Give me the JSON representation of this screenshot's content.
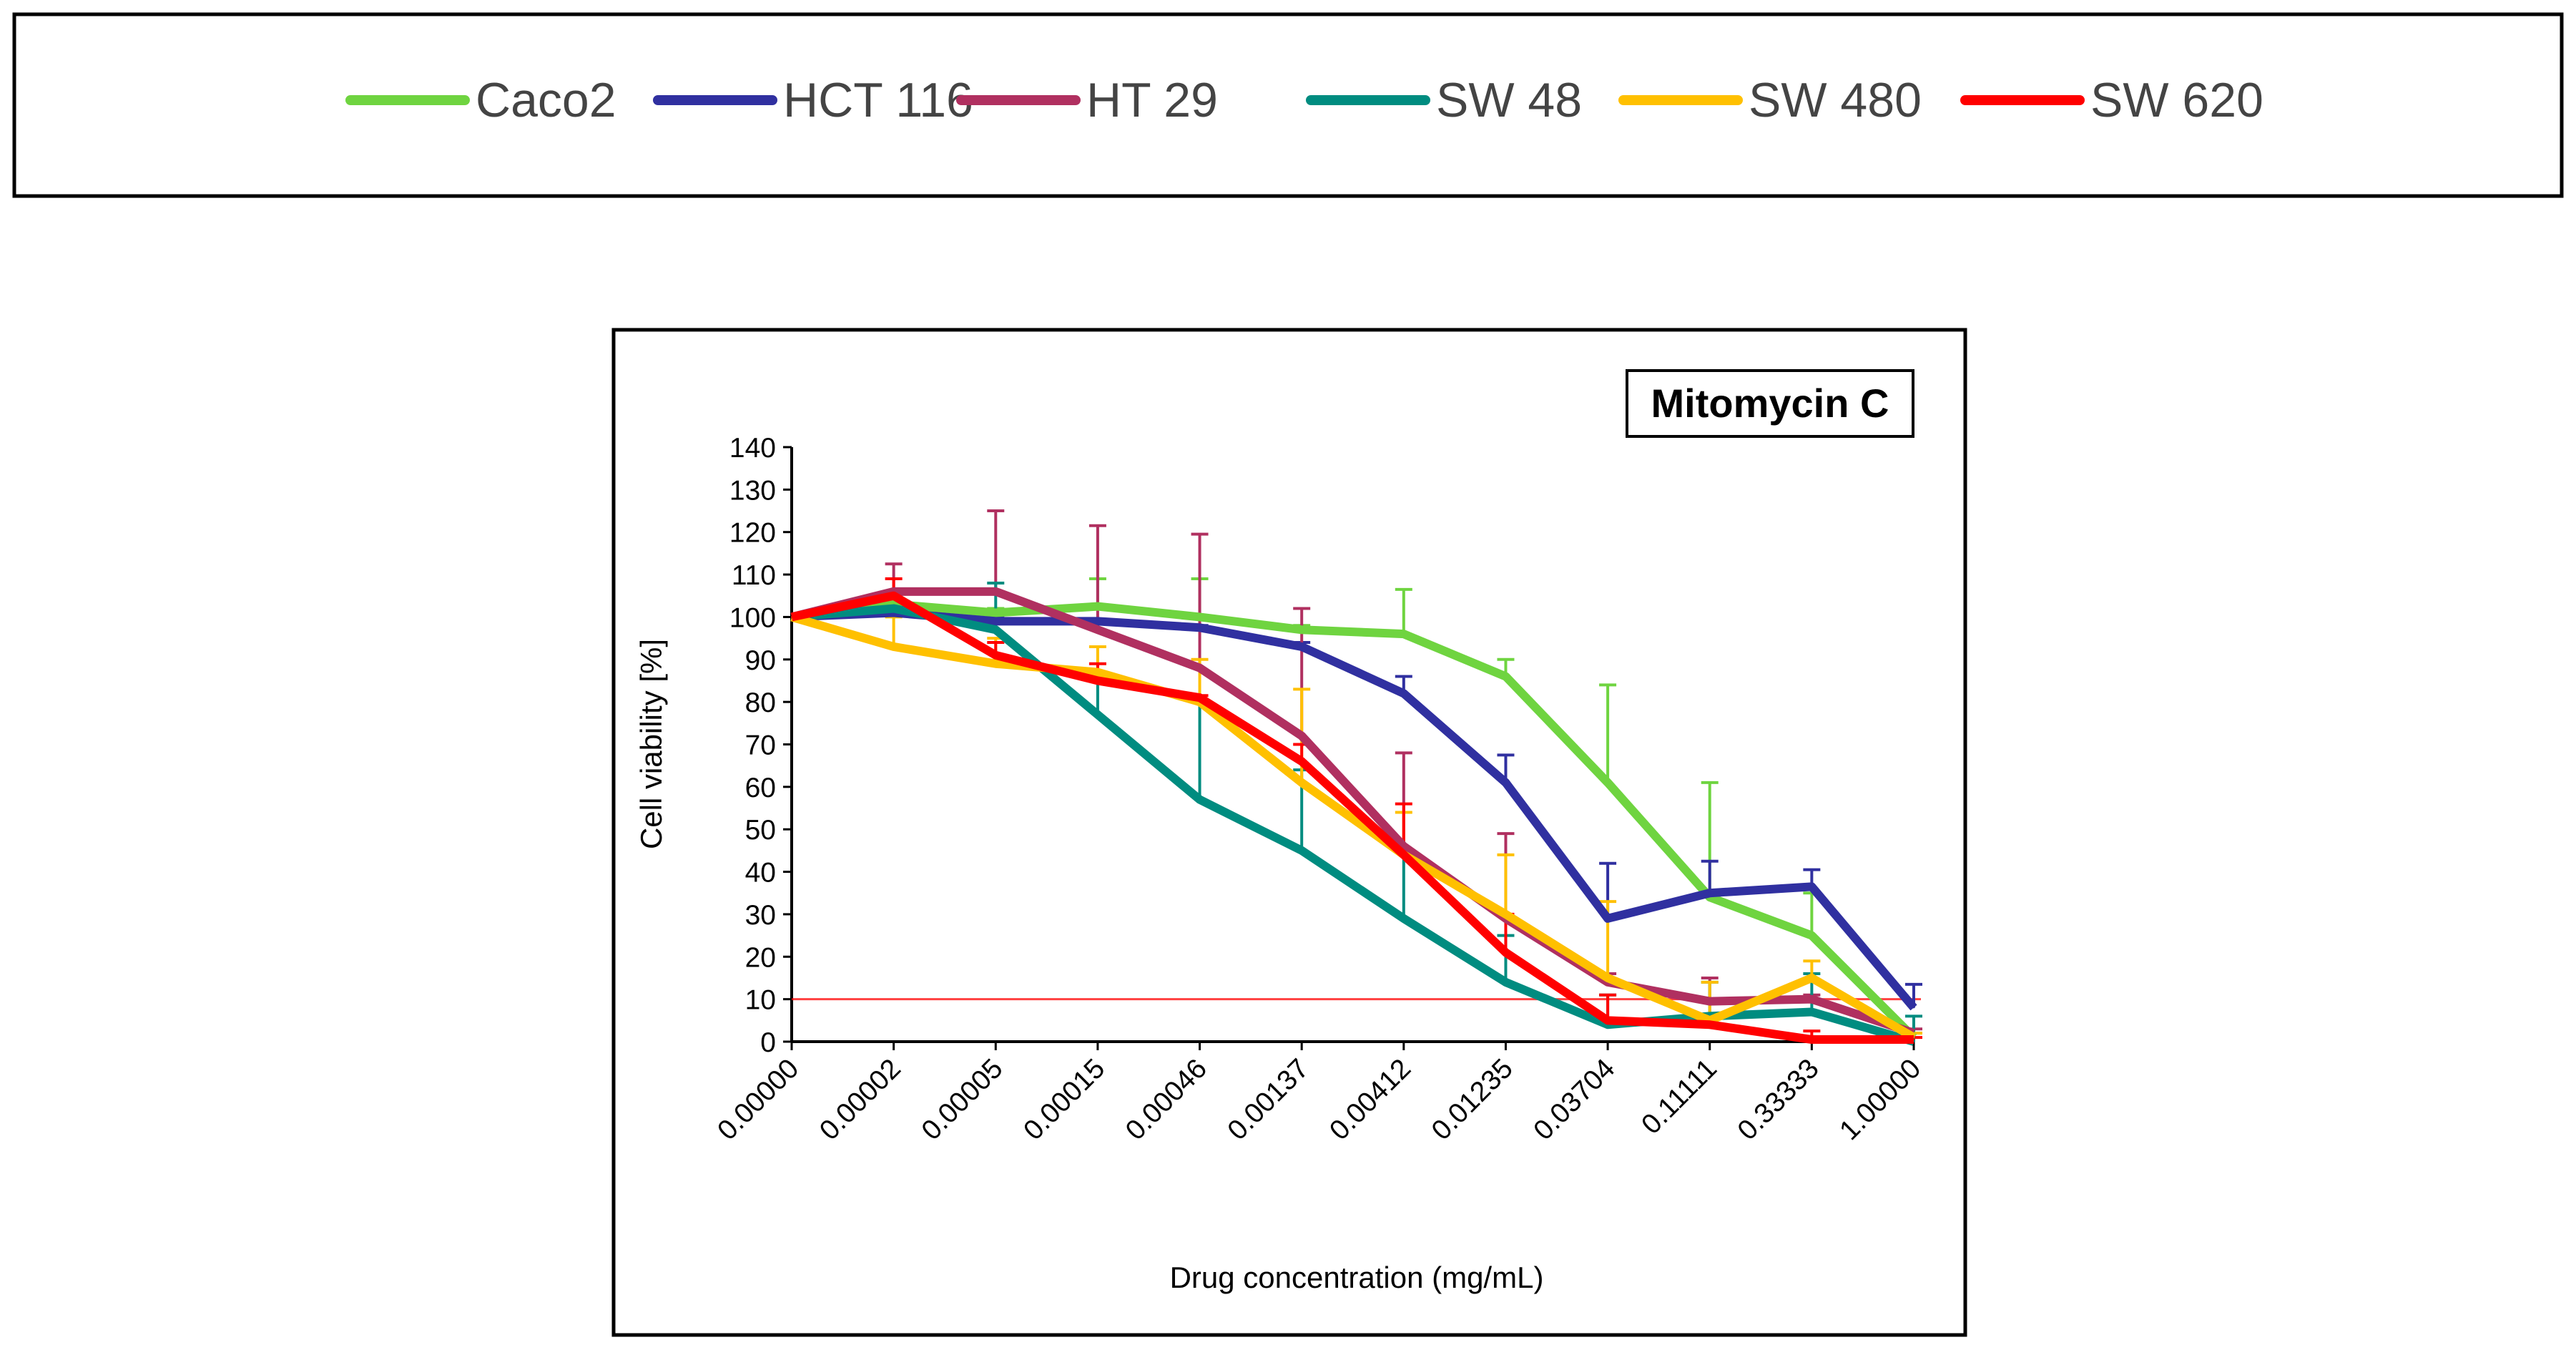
{
  "chart_data": {
    "type": "line",
    "title": "Mitomycin C",
    "xlabel": "Drug concentration (mg/mL)",
    "ylabel": "Cell viability [%]",
    "ylim": [
      0,
      140
    ],
    "yticks": [
      0,
      10,
      20,
      30,
      40,
      50,
      60,
      70,
      80,
      90,
      100,
      110,
      120,
      130,
      140
    ],
    "categories": [
      "0.00000",
      "0.00002",
      "0.00005",
      "0.00015",
      "0.00046",
      "0.00137",
      "0.00412",
      "0.01235",
      "0.03704",
      "0.11111",
      "0.33333",
      "1.00000"
    ],
    "reference_line": {
      "y": 10,
      "color": "#ff0000"
    },
    "legend_position": "top",
    "series": [
      {
        "name": "Caco2",
        "color": "#6fd440",
        "values": [
          100,
          103,
          101,
          102.5,
          100,
          97,
          96,
          86,
          61,
          34,
          25,
          1
        ],
        "error_upper": [
          100,
          104,
          102,
          109,
          109,
          98,
          106.5,
          90,
          84,
          61,
          35,
          2
        ]
      },
      {
        "name": "HCT 116",
        "color": "#3030a0",
        "values": [
          100,
          101,
          99,
          99,
          97.5,
          93,
          82,
          61,
          29,
          35,
          36.5,
          8
        ],
        "error_upper": [
          100,
          102,
          100,
          99.5,
          98,
          94,
          86,
          67.5,
          42,
          42.5,
          40.5,
          13.5
        ]
      },
      {
        "name": "HT 29",
        "color": "#b03060",
        "values": [
          100,
          106,
          106,
          97,
          88,
          72,
          46,
          29,
          14,
          9.5,
          10,
          2
        ],
        "error_upper": [
          100,
          112.5,
          125,
          121.5,
          119.5,
          102,
          68,
          49,
          16,
          15,
          11,
          3
        ]
      },
      {
        "name": "SW 48",
        "color": "#008c80",
        "values": [
          100,
          102,
          97,
          77,
          57,
          45,
          29,
          14,
          4,
          6,
          7,
          0
        ],
        "error_upper": [
          100,
          103,
          108,
          85,
          80,
          64,
          45,
          25,
          11,
          14,
          16,
          6
        ]
      },
      {
        "name": "SW 480",
        "color": "#ffc000",
        "values": [
          100,
          93,
          89,
          87,
          80,
          61,
          44,
          30,
          15,
          5,
          15,
          1
        ],
        "error_upper": [
          100,
          100,
          95,
          93,
          90,
          83,
          54,
          44,
          33,
          14,
          19,
          2
        ]
      },
      {
        "name": "SW 620",
        "color": "#ff0000",
        "values": [
          100,
          105,
          91,
          85,
          81,
          66,
          44,
          21,
          5,
          4,
          0.5,
          0.5
        ],
        "error_upper": [
          100,
          109,
          94,
          89,
          81.5,
          70,
          56,
          30,
          11,
          6,
          2.5,
          1
        ]
      }
    ]
  }
}
